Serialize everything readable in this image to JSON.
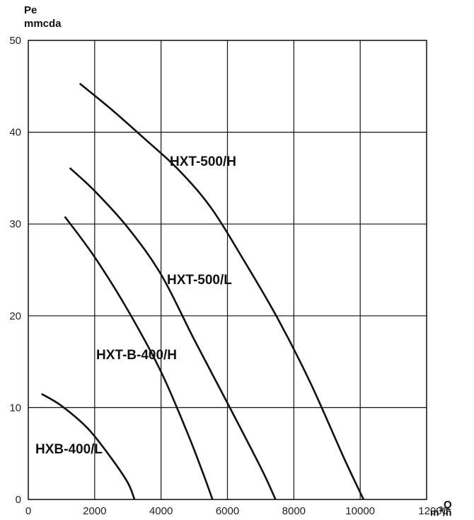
{
  "chart_data": {
    "type": "line",
    "ylabel_line1": "Pe",
    "ylabel_line2": "mmcda",
    "xlabel": "Q",
    "xunit_base": "m",
    "xunit_sup": "3",
    "xunit_tail": "/h",
    "xlim": [
      0,
      12000
    ],
    "ylim": [
      0,
      50
    ],
    "xticks": [
      0,
      2000,
      4000,
      6000,
      8000,
      10000,
      12000
    ],
    "yticks": [
      0,
      10,
      20,
      30,
      40,
      50
    ],
    "grid": true,
    "series": [
      {
        "name": "HXT-500/H",
        "points": [
          [
            1550,
            45.3
          ],
          [
            2500,
            42.5
          ],
          [
            3500,
            39.3
          ],
          [
            4500,
            36.0
          ],
          [
            5500,
            31.8
          ],
          [
            6500,
            26.0
          ],
          [
            7500,
            19.8
          ],
          [
            8500,
            12.7
          ],
          [
            9500,
            4.6
          ],
          [
            10100,
            0
          ]
        ]
      },
      {
        "name": "HXT-500/L",
        "points": [
          [
            1250,
            36.1
          ],
          [
            2000,
            33.6
          ],
          [
            3000,
            29.6
          ],
          [
            4000,
            24.5
          ],
          [
            5000,
            17.4
          ],
          [
            6000,
            10.5
          ],
          [
            7000,
            3.5
          ],
          [
            7450,
            0
          ]
        ]
      },
      {
        "name": "HXT-B-400/H",
        "points": [
          [
            1100,
            30.8
          ],
          [
            2000,
            26.4
          ],
          [
            3000,
            20.6
          ],
          [
            4000,
            13.9
          ],
          [
            4800,
            7.2
          ],
          [
            5300,
            2.5
          ],
          [
            5550,
            0
          ]
        ]
      },
      {
        "name": "HXB-400/L",
        "points": [
          [
            400,
            11.5
          ],
          [
            1000,
            10.2
          ],
          [
            1800,
            7.7
          ],
          [
            2500,
            4.5
          ],
          [
            3000,
            1.8
          ],
          [
            3200,
            0
          ]
        ]
      }
    ],
    "series_label_anchor": [
      [
        10000,
        37.4
      ],
      [
        9950,
        26.7
      ],
      [
        10000,
        15.9
      ],
      [
        10000,
        5.5
      ]
    ]
  }
}
